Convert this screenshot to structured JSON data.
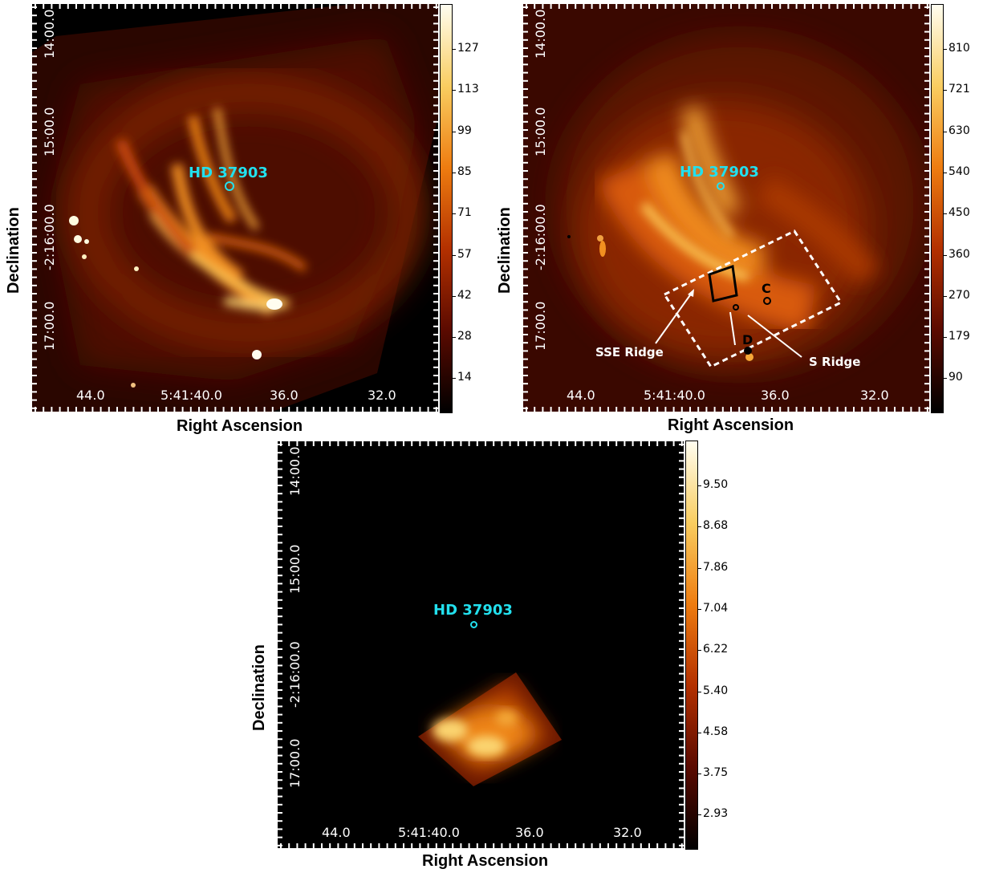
{
  "panels": [
    {
      "id": "top-left",
      "xlabel": "Right Ascension",
      "ylabel": "Declination",
      "ra_ticks": [
        "44.0",
        "5:41:40.0",
        "36.0",
        "32.0"
      ],
      "dec_ticks": [
        "14:00.0",
        "15:00.0",
        "-2:16:00.0",
        "17:00.0"
      ],
      "star_label": "HD 37903",
      "colorbar_ticks": [
        "127",
        "113",
        "99",
        "85",
        "71",
        "57",
        "42",
        "28",
        "14"
      ]
    },
    {
      "id": "top-right",
      "xlabel": "Right Ascension",
      "ylabel": "Declination",
      "ra_ticks": [
        "44.0",
        "5:41:40.0",
        "36.0",
        "32.0"
      ],
      "dec_ticks": [
        "14:00.0",
        "15:00.0",
        "-2:16:00.0",
        "17:00.0"
      ],
      "star_label": "HD 37903",
      "colorbar_ticks": [
        "810",
        "721",
        "630",
        "540",
        "450",
        "360",
        "270",
        "179",
        "90"
      ],
      "annotations": {
        "sse_ridge": "SSE Ridge",
        "s_ridge": "S Ridge",
        "c": "C",
        "d": "D"
      }
    },
    {
      "id": "bottom",
      "xlabel": "Right Ascension",
      "ylabel": "Declination",
      "ra_ticks": [
        "44.0",
        "5:41:40.0",
        "36.0",
        "32.0"
      ],
      "dec_ticks": [
        "14:00.0",
        "15:00.0",
        "-2:16:00.0",
        "17:00.0"
      ],
      "star_label": "HD 37903",
      "colorbar_ticks": [
        "9.50",
        "8.68",
        "7.86",
        "7.04",
        "6.22",
        "5.40",
        "4.58",
        "3.75",
        "2.93"
      ]
    }
  ],
  "colors": {
    "star": "#22e0ee",
    "colormap_high": "#fffbe0",
    "colormap_mid": "#f08a14",
    "colormap_low": "#000000"
  }
}
